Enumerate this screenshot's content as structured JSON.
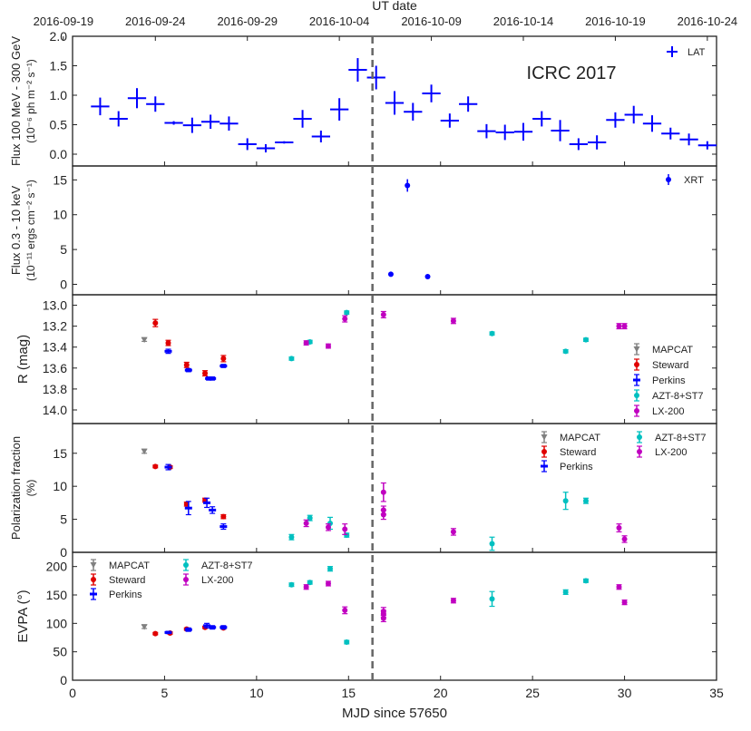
{
  "chart_data": {
    "type": "scatter",
    "x_axis": {
      "label": "MJD since 57650",
      "lim": [
        0,
        35
      ],
      "ticks": [
        0,
        5,
        10,
        15,
        20,
        25,
        30,
        35
      ]
    },
    "top_axis": {
      "label": "UT date",
      "ticks": [
        {
          "x": -0.5,
          "label": "2016-09-19"
        },
        {
          "x": 4.5,
          "label": "2016-09-24"
        },
        {
          "x": 9.5,
          "label": "2016-09-29"
        },
        {
          "x": 14.5,
          "label": "2016-10-04"
        },
        {
          "x": 19.5,
          "label": "2016-10-09"
        },
        {
          "x": 24.5,
          "label": "2016-10-14"
        },
        {
          "x": 29.5,
          "label": "2016-10-19"
        },
        {
          "x": 34.5,
          "label": "2016-10-24"
        }
      ]
    },
    "vline_x": 16.3,
    "annotation": "ICRC 2017",
    "panels": [
      {
        "id": "lat",
        "ylabel": "Flux 100 MeV - 300 GeV",
        "ylabel2": "(10⁻⁶ ph m⁻² s⁻¹)",
        "ylim": [
          -0.2,
          2.0
        ],
        "yticks": [
          0.0,
          0.5,
          1.0,
          1.5,
          2.0
        ],
        "ytick_labels": [
          "0.0",
          "0.5",
          "1.0",
          "1.5",
          "2.0"
        ],
        "legend_position": "upper right",
        "series": [
          {
            "name": "LAT",
            "color": "#0000ff",
            "marker": "cross",
            "points": [
              [
                1.5,
                0.81,
                0.5,
                0.15
              ],
              [
                2.5,
                0.6,
                0.5,
                0.13
              ],
              [
                3.5,
                0.95,
                0.5,
                0.17
              ],
              [
                4.5,
                0.85,
                0.5,
                0.13
              ],
              [
                5.5,
                0.53,
                0.5,
                0.03
              ],
              [
                6.5,
                0.49,
                0.5,
                0.13
              ],
              [
                7.5,
                0.55,
                0.5,
                0.12
              ],
              [
                8.5,
                0.52,
                0.5,
                0.12
              ],
              [
                9.5,
                0.17,
                0.5,
                0.1
              ],
              [
                10.5,
                0.1,
                0.5,
                0.07
              ],
              [
                11.5,
                0.2,
                0.5,
                0.02
              ],
              [
                12.5,
                0.6,
                0.5,
                0.15
              ],
              [
                13.5,
                0.3,
                0.5,
                0.1
              ],
              [
                14.5,
                0.76,
                0.5,
                0.19
              ],
              [
                15.5,
                1.43,
                0.5,
                0.2
              ],
              [
                16.5,
                1.3,
                0.5,
                0.2
              ],
              [
                17.5,
                0.87,
                0.5,
                0.2
              ],
              [
                18.5,
                0.72,
                0.5,
                0.15
              ],
              [
                19.5,
                1.03,
                0.5,
                0.15
              ],
              [
                20.5,
                0.57,
                0.5,
                0.12
              ],
              [
                21.5,
                0.85,
                0.5,
                0.13
              ],
              [
                22.5,
                0.39,
                0.5,
                0.12
              ],
              [
                23.5,
                0.37,
                0.5,
                0.13
              ],
              [
                24.5,
                0.38,
                0.5,
                0.15
              ],
              [
                25.5,
                0.6,
                0.5,
                0.13
              ],
              [
                26.5,
                0.4,
                0.5,
                0.18
              ],
              [
                27.5,
                0.17,
                0.5,
                0.1
              ],
              [
                28.5,
                0.2,
                0.5,
                0.12
              ],
              [
                29.5,
                0.58,
                0.5,
                0.13
              ],
              [
                30.5,
                0.67,
                0.5,
                0.15
              ],
              [
                31.5,
                0.52,
                0.5,
                0.14
              ],
              [
                32.5,
                0.35,
                0.5,
                0.1
              ],
              [
                33.5,
                0.25,
                0.5,
                0.1
              ],
              [
                34.5,
                0.15,
                0.5,
                0.07
              ]
            ]
          }
        ]
      },
      {
        "id": "xrt",
        "ylabel": "Flux 0.3 - 10 keV",
        "ylabel2": "(10⁻¹¹ ergs cm⁻² s⁻¹)",
        "ylim": [
          -1.5,
          17.0
        ],
        "yticks": [
          0,
          5,
          10,
          15
        ],
        "ytick_labels": [
          "0",
          "5",
          "10",
          "15"
        ],
        "legend_position": "upper right",
        "series": [
          {
            "name": "XRT",
            "color": "#0000ff",
            "marker": "circle",
            "points": [
              [
                17.3,
                1.45,
                0,
                0.12
              ],
              [
                18.2,
                14.2,
                0,
                0.9
              ],
              [
                19.3,
                1.1,
                0,
                0.12
              ]
            ]
          }
        ]
      },
      {
        "id": "rmag",
        "ylabel": "R (mag)",
        "ylim": [
          14.13,
          12.9
        ],
        "yticks": [
          13.0,
          13.2,
          13.4,
          13.6,
          13.8,
          14.0
        ],
        "ytick_labels": [
          "13.0",
          "13.2",
          "13.4",
          "13.6",
          "13.8",
          "14.0"
        ],
        "legend_position": "right",
        "series": [
          {
            "name": "MAPCAT",
            "color": "#808080",
            "marker": "triangle",
            "points": [
              [
                3.9,
                13.33,
                0,
                0.015
              ]
            ]
          },
          {
            "name": "Steward",
            "color": "#e00000",
            "marker": "circle",
            "points": [
              [
                4.5,
                13.17,
                0,
                0.035
              ],
              [
                5.2,
                13.36,
                0,
                0.025
              ],
              [
                6.2,
                13.57,
                0,
                0.025
              ],
              [
                7.2,
                13.65,
                0,
                0.025
              ],
              [
                8.2,
                13.51,
                0,
                0.03
              ]
            ]
          },
          {
            "name": "Perkins",
            "color": "#0000ff",
            "marker": "dash",
            "points": [
              [
                5.2,
                13.44,
                0,
                0.02
              ],
              [
                6.3,
                13.62,
                0,
                0.015
              ],
              [
                7.4,
                13.7,
                0,
                0.015
              ],
              [
                7.6,
                13.7,
                0,
                0.015
              ],
              [
                8.2,
                13.58,
                0,
                0.015
              ]
            ]
          },
          {
            "name": "AZT-8+ST7",
            "color": "#00c0c0",
            "marker": "circle",
            "points": [
              [
                11.9,
                13.51,
                0,
                0.015
              ],
              [
                12.9,
                13.35,
                0,
                0.015
              ],
              [
                14.9,
                13.07,
                0,
                0.015
              ],
              [
                22.8,
                13.27,
                0,
                0.015
              ],
              [
                26.8,
                13.44,
                0,
                0.015
              ],
              [
                27.9,
                13.33,
                0,
                0.015
              ]
            ]
          },
          {
            "name": "LX-200",
            "color": "#c000c0",
            "marker": "circle",
            "points": [
              [
                12.7,
                13.36,
                0,
                0.02
              ],
              [
                13.9,
                13.39,
                0,
                0.02
              ],
              [
                14.8,
                13.13,
                0,
                0.03
              ],
              [
                16.9,
                13.09,
                0,
                0.03
              ],
              [
                20.7,
                13.15,
                0,
                0.025
              ],
              [
                29.7,
                13.2,
                0,
                0.025
              ],
              [
                30.0,
                13.2,
                0,
                0.025
              ]
            ]
          }
        ]
      },
      {
        "id": "polfrac",
        "ylabel": "Polarization fraction",
        "ylabel2": "(%)",
        "ylim": [
          0,
          19.5
        ],
        "yticks": [
          0,
          5,
          10,
          15
        ],
        "ytick_labels": [
          "0",
          "5",
          "10",
          "15"
        ],
        "legend_position": "upper right",
        "series": [
          {
            "name": "MAPCAT",
            "color": "#808080",
            "marker": "triangle",
            "points": [
              [
                3.9,
                15.3,
                0,
                0.3
              ]
            ]
          },
          {
            "name": "Steward",
            "color": "#e00000",
            "marker": "circle",
            "points": [
              [
                4.5,
                13.0,
                0,
                0.2
              ],
              [
                5.3,
                12.9,
                0,
                0.2
              ],
              [
                6.2,
                7.3,
                0,
                0.3
              ],
              [
                7.2,
                7.9,
                0,
                0.3
              ],
              [
                8.2,
                5.4,
                0,
                0.3
              ]
            ]
          },
          {
            "name": "Perkins",
            "color": "#0000ff",
            "marker": "dash",
            "points": [
              [
                5.2,
                12.9,
                0,
                0.4
              ],
              [
                6.3,
                6.7,
                0,
                1.0
              ],
              [
                7.3,
                7.5,
                0,
                0.7
              ],
              [
                7.6,
                6.4,
                0,
                0.5
              ],
              [
                8.2,
                3.9,
                0,
                0.4
              ]
            ]
          },
          {
            "name": "AZT-8+ST7",
            "color": "#00c0c0",
            "marker": "circle",
            "points": [
              [
                11.9,
                2.3,
                0,
                0.4
              ],
              [
                12.9,
                5.2,
                0,
                0.4
              ],
              [
                14.0,
                4.4,
                0,
                0.9
              ],
              [
                14.9,
                2.6,
                0,
                0.3
              ],
              [
                22.8,
                1.3,
                0,
                1.0
              ],
              [
                26.8,
                7.8,
                0,
                1.3
              ],
              [
                27.9,
                7.8,
                0,
                0.4
              ]
            ]
          },
          {
            "name": "LX-200",
            "color": "#c000c0",
            "marker": "circle",
            "points": [
              [
                12.7,
                4.4,
                0,
                0.5
              ],
              [
                13.9,
                3.8,
                0,
                0.5
              ],
              [
                14.8,
                3.5,
                0,
                0.8
              ],
              [
                16.9,
                9.1,
                0,
                1.4
              ],
              [
                16.9,
                5.7,
                0,
                0.7
              ],
              [
                16.9,
                6.4,
                0,
                0.6
              ],
              [
                20.7,
                3.1,
                0,
                0.5
              ],
              [
                29.7,
                3.7,
                0,
                0.6
              ],
              [
                30.0,
                2.0,
                0,
                0.5
              ]
            ]
          }
        ]
      },
      {
        "id": "evpa",
        "ylabel": "EVPA (°)",
        "ylim": [
          0,
          225
        ],
        "yticks": [
          0,
          50,
          100,
          150,
          200
        ],
        "ytick_labels": [
          "0",
          "50",
          "100",
          "150",
          "200"
        ],
        "legend_position": "upper left",
        "series": [
          {
            "name": "MAPCAT",
            "color": "#808080",
            "marker": "triangle",
            "points": [
              [
                3.9,
                94,
                0,
                3
              ]
            ]
          },
          {
            "name": "Steward",
            "color": "#e00000",
            "marker": "circle",
            "points": [
              [
                4.5,
                82,
                0,
                2
              ],
              [
                5.3,
                83,
                0,
                2
              ],
              [
                6.2,
                90,
                0,
                2
              ],
              [
                7.2,
                93,
                0,
                2
              ],
              [
                8.2,
                92,
                0,
                2
              ]
            ]
          },
          {
            "name": "Perkins",
            "color": "#0000ff",
            "marker": "dash",
            "points": [
              [
                5.2,
                84,
                0,
                2
              ],
              [
                6.3,
                89,
                0,
                3
              ],
              [
                7.3,
                96,
                0,
                4
              ],
              [
                7.6,
                93,
                0,
                3
              ],
              [
                8.2,
                93,
                0,
                3
              ]
            ]
          },
          {
            "name": "AZT-8+ST7",
            "color": "#00c0c0",
            "marker": "circle",
            "points": [
              [
                11.9,
                168,
                0,
                3
              ],
              [
                12.9,
                172,
                0,
                3
              ],
              [
                14.0,
                196,
                0,
                4
              ],
              [
                14.9,
                67,
                0,
                3
              ],
              [
                22.8,
                143,
                0,
                13
              ],
              [
                26.8,
                155,
                0,
                4
              ],
              [
                27.9,
                175,
                0,
                3
              ]
            ]
          },
          {
            "name": "LX-200",
            "color": "#c000c0",
            "marker": "circle",
            "points": [
              [
                12.7,
                164,
                0,
                4
              ],
              [
                13.9,
                170,
                0,
                4
              ],
              [
                14.8,
                123,
                0,
                6
              ],
              [
                16.9,
                121,
                0,
                7
              ],
              [
                16.9,
                109,
                0,
                6
              ],
              [
                16.9,
                117,
                0,
                6
              ],
              [
                20.7,
                140,
                0,
                4
              ],
              [
                29.7,
                164,
                0,
                4
              ],
              [
                30.0,
                137,
                0,
                4
              ]
            ]
          }
        ]
      }
    ]
  }
}
